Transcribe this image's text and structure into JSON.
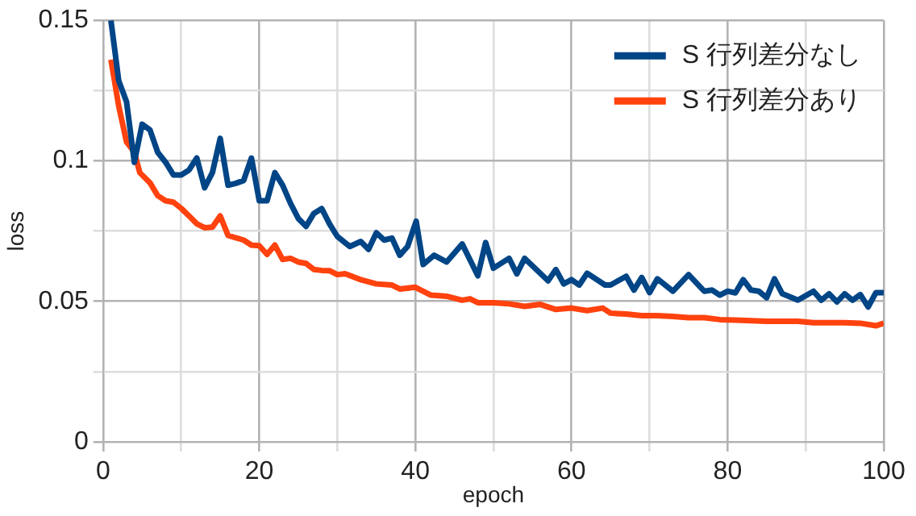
{
  "chart_data": {
    "type": "line",
    "xlabel": "epoch",
    "ylabel": "loss",
    "xlim": [
      0,
      100
    ],
    "ylim": [
      0,
      0.15
    ],
    "xticks": [
      0,
      {
        "value": 10,
        "label": null
      },
      20,
      {
        "value": 30,
        "label": null
      },
      40,
      {
        "value": 50,
        "label": null
      },
      60,
      {
        "value": 70,
        "label": null
      },
      80,
      {
        "value": 90,
        "label": null
      },
      100
    ],
    "yticks": [
      0,
      {
        "value": 0.025,
        "label": null
      },
      0.05,
      {
        "value": 0.075,
        "label": null
      },
      0.1,
      {
        "value": 0.125,
        "label": null
      },
      0.15
    ],
    "grid": true,
    "legend": "top right",
    "marker": "none",
    "line_style": "solid",
    "series": [
      {
        "name": "S 行列差分なし",
        "color": "#004586",
        "x": [
          1,
          2,
          3,
          4,
          5,
          6,
          7,
          8,
          9,
          10,
          11,
          12,
          13,
          14,
          15,
          16,
          17,
          18,
          19,
          20,
          21,
          22,
          23,
          24,
          25,
          26,
          27,
          28,
          29,
          30,
          31.6,
          33,
          34,
          35,
          36,
          37,
          38,
          39,
          40.1,
          41,
          42.4,
          44,
          46,
          48,
          49,
          50,
          52,
          53,
          54,
          57,
          58,
          59,
          60,
          61,
          62,
          64.3,
          65,
          67,
          68,
          69,
          70,
          71,
          73,
          75,
          77,
          78,
          79,
          80,
          81,
          82,
          83,
          84,
          85,
          86,
          87,
          89,
          91,
          92,
          93,
          94,
          95,
          96,
          97,
          98,
          99,
          100
        ],
        "values": [
          0.15,
          0.1285,
          0.121,
          0.0995,
          0.113,
          0.111,
          0.103,
          0.0995,
          0.095,
          0.095,
          0.0967,
          0.101,
          0.0904,
          0.0958,
          0.108,
          0.0913,
          0.092,
          0.093,
          0.101,
          0.0858,
          0.0858,
          0.0958,
          0.0913,
          0.0849,
          0.0795,
          0.0767,
          0.0813,
          0.083,
          0.0776,
          0.0731,
          0.0695,
          0.0713,
          0.0685,
          0.0744,
          0.0718,
          0.0725,
          0.0664,
          0.0695,
          0.0785,
          0.0631,
          0.0664,
          0.064,
          0.0704,
          0.0591,
          0.0709,
          0.0618,
          0.0653,
          0.0598,
          0.0653,
          0.0573,
          0.0613,
          0.0562,
          0.0577,
          0.0558,
          0.06,
          0.0558,
          0.0558,
          0.0589,
          0.054,
          0.0585,
          0.0531,
          0.058,
          0.0536,
          0.0595,
          0.0536,
          0.054,
          0.0522,
          0.0536,
          0.053,
          0.0577,
          0.054,
          0.0536,
          0.0513,
          0.058,
          0.0527,
          0.0504,
          0.0536,
          0.0504,
          0.0527,
          0.0498,
          0.0527,
          0.0504,
          0.0524,
          0.048,
          0.0531,
          0.0531
        ]
      },
      {
        "name": "S 行列差分あり",
        "color": "#ff420e",
        "x": [
          1,
          2,
          3,
          4,
          4.7,
          6,
          7,
          8,
          9,
          10,
          11,
          12,
          13,
          14,
          15,
          16,
          17,
          18,
          19,
          20,
          21,
          22,
          23,
          24,
          25,
          26,
          27,
          28,
          29,
          30,
          31,
          33,
          35,
          37,
          38,
          40,
          42,
          44,
          46,
          47,
          48,
          50,
          52,
          54,
          56,
          58,
          60,
          62,
          64,
          65,
          67,
          69,
          71,
          73,
          75,
          77,
          79,
          81,
          83,
          85,
          87,
          89,
          91,
          93,
          95,
          97,
          99,
          100
        ],
        "values": [
          0.136,
          0.1195,
          0.1067,
          0.1031,
          0.0958,
          0.0922,
          0.0876,
          0.0858,
          0.0853,
          0.0831,
          0.0804,
          0.0776,
          0.0762,
          0.0764,
          0.0804,
          0.0735,
          0.0726,
          0.0718,
          0.07,
          0.0698,
          0.0667,
          0.07,
          0.0649,
          0.0653,
          0.064,
          0.0635,
          0.0613,
          0.061,
          0.0609,
          0.0595,
          0.0598,
          0.0577,
          0.0562,
          0.0558,
          0.0544,
          0.055,
          0.0522,
          0.0518,
          0.0504,
          0.0509,
          0.0495,
          0.0495,
          0.0491,
          0.0482,
          0.0489,
          0.0471,
          0.0476,
          0.0467,
          0.0476,
          0.0458,
          0.0455,
          0.0449,
          0.0449,
          0.0446,
          0.0442,
          0.0442,
          0.0435,
          0.0433,
          0.0431,
          0.0429,
          0.0429,
          0.0429,
          0.0424,
          0.0424,
          0.0424,
          0.0422,
          0.0413,
          0.0422
        ]
      }
    ]
  }
}
